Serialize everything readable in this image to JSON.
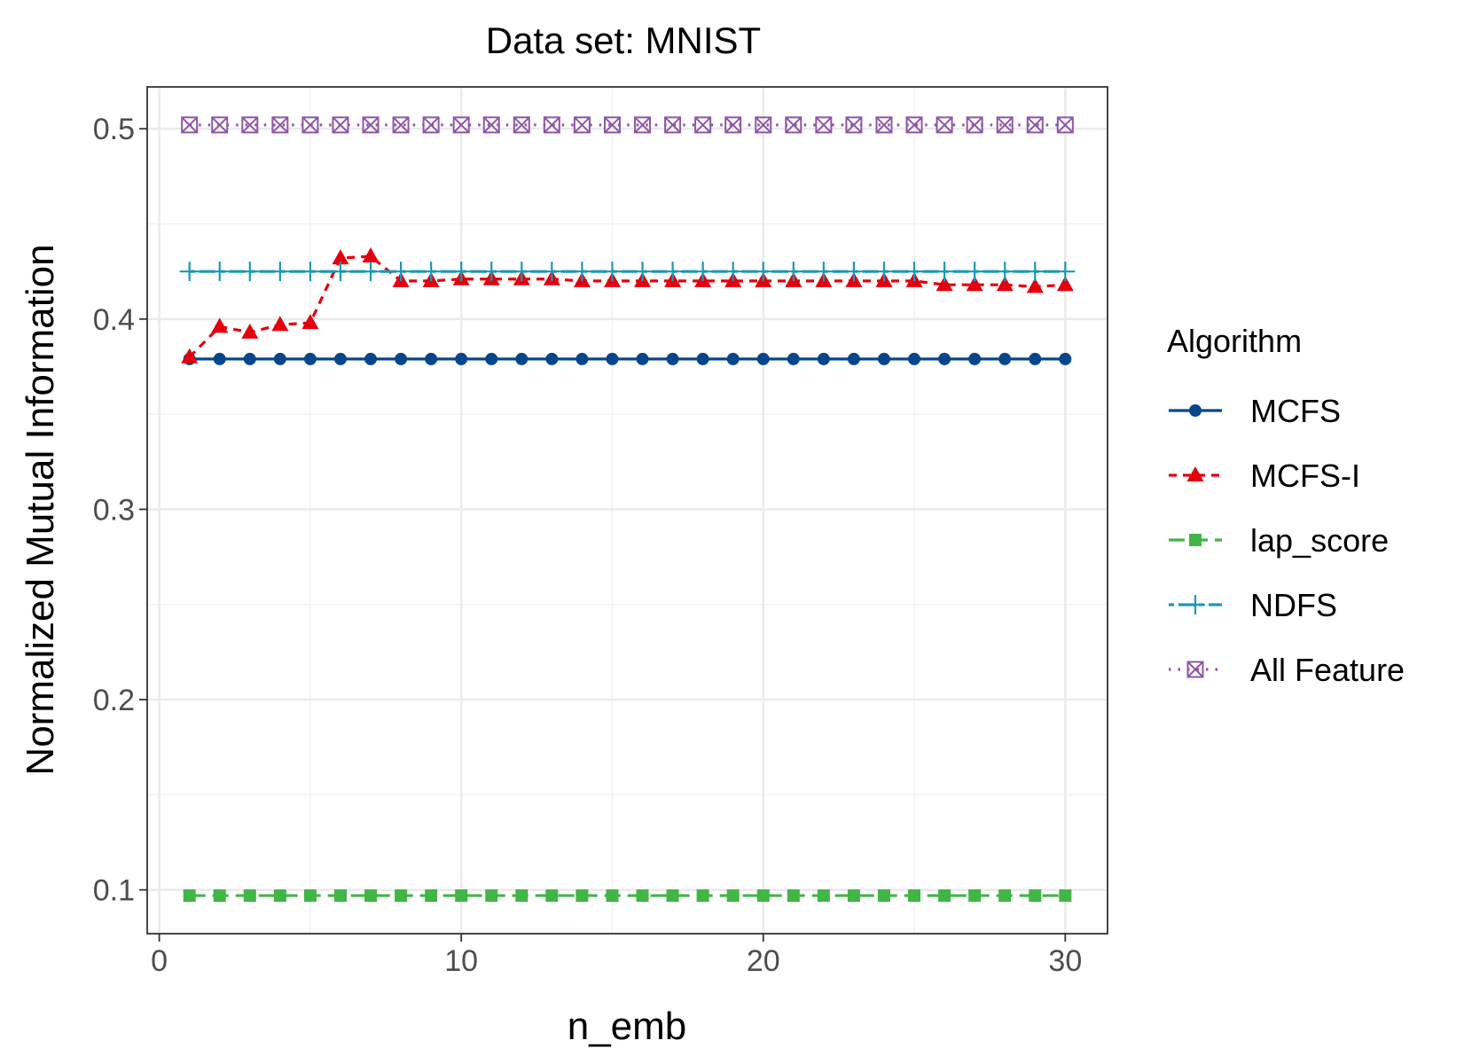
{
  "chart_data": {
    "type": "line",
    "title": "Data set: MNIST",
    "xlabel": "n_emb",
    "ylabel": "Normalized Mutual Information",
    "xlim": [
      -0.4,
      31.4
    ],
    "ylim": [
      0.077,
      0.522
    ],
    "x_ticks": [
      0,
      10,
      20,
      30
    ],
    "x_tick_labels": [
      "0",
      "10",
      "20",
      "30"
    ],
    "y_ticks": [
      0.1,
      0.2,
      0.3,
      0.4,
      0.5
    ],
    "y_tick_labels": [
      "0.1",
      "0.2",
      "0.3",
      "0.4",
      "0.5"
    ],
    "grid": true,
    "legend": {
      "title": "Algorithm",
      "position": "right"
    },
    "x": [
      1,
      2,
      3,
      4,
      5,
      6,
      7,
      8,
      9,
      10,
      11,
      12,
      13,
      14,
      15,
      16,
      17,
      18,
      19,
      20,
      21,
      22,
      23,
      24,
      25,
      26,
      27,
      28,
      29,
      30
    ],
    "series": [
      {
        "name": "MCFS",
        "color": "#08468c",
        "dash": "solid",
        "marker": "circle",
        "values": [
          0.379,
          0.379,
          0.379,
          0.379,
          0.379,
          0.379,
          0.379,
          0.379,
          0.379,
          0.379,
          0.379,
          0.379,
          0.379,
          0.379,
          0.379,
          0.379,
          0.379,
          0.379,
          0.379,
          0.379,
          0.379,
          0.379,
          0.379,
          0.379,
          0.379,
          0.379,
          0.379,
          0.379,
          0.379,
          0.379
        ]
      },
      {
        "name": "MCFS-I",
        "color": "#e3000f",
        "dash": "dashed",
        "marker": "triangle",
        "values": [
          0.38,
          0.396,
          0.393,
          0.397,
          0.398,
          0.432,
          0.433,
          0.42,
          0.42,
          0.421,
          0.421,
          0.421,
          0.421,
          0.42,
          0.42,
          0.42,
          0.42,
          0.42,
          0.42,
          0.42,
          0.42,
          0.42,
          0.42,
          0.42,
          0.42,
          0.418,
          0.418,
          0.418,
          0.417,
          0.418
        ]
      },
      {
        "name": "lap_score",
        "color": "#41b546",
        "dash": "longdash",
        "marker": "square",
        "values": [
          0.097,
          0.097,
          0.097,
          0.097,
          0.097,
          0.097,
          0.097,
          0.097,
          0.097,
          0.097,
          0.097,
          0.097,
          0.097,
          0.097,
          0.097,
          0.097,
          0.097,
          0.097,
          0.097,
          0.097,
          0.097,
          0.097,
          0.097,
          0.097,
          0.097,
          0.097,
          0.097,
          0.097,
          0.097,
          0.097
        ]
      },
      {
        "name": "NDFS",
        "color": "#1a98b5",
        "dash": "twodash",
        "marker": "plus",
        "values": [
          0.425,
          0.425,
          0.425,
          0.425,
          0.425,
          0.425,
          0.425,
          0.425,
          0.425,
          0.425,
          0.425,
          0.425,
          0.425,
          0.425,
          0.425,
          0.425,
          0.425,
          0.425,
          0.425,
          0.425,
          0.425,
          0.425,
          0.425,
          0.425,
          0.425,
          0.425,
          0.425,
          0.425,
          0.425,
          0.425
        ]
      },
      {
        "name": "All Feature",
        "color": "#8e56a6",
        "dash": "dotted",
        "marker": "boxcross",
        "values": [
          0.502,
          0.502,
          0.502,
          0.502,
          0.502,
          0.502,
          0.502,
          0.502,
          0.502,
          0.502,
          0.502,
          0.502,
          0.502,
          0.502,
          0.502,
          0.502,
          0.502,
          0.502,
          0.502,
          0.502,
          0.502,
          0.502,
          0.502,
          0.502,
          0.502,
          0.502,
          0.502,
          0.502,
          0.502,
          0.502
        ]
      }
    ]
  }
}
